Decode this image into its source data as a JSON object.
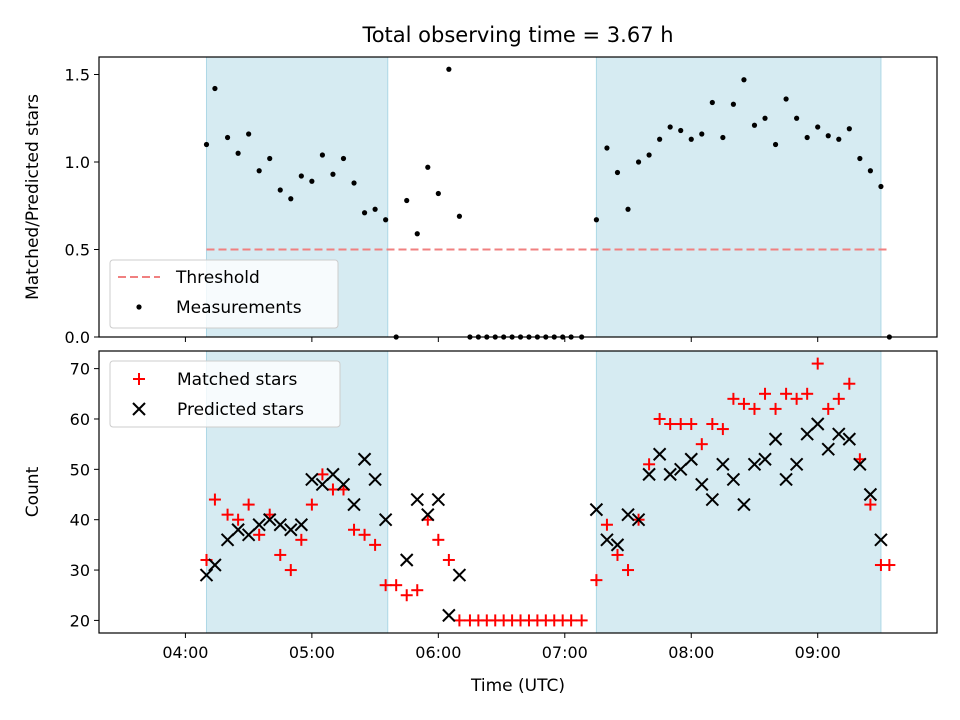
{
  "chart_data": {
    "type": "scatter",
    "title": "Total observing time = 3.67 h",
    "shaded_intervals_minutes": [
      [
        250,
        336
      ],
      [
        435,
        570
      ]
    ],
    "x_ticks": [
      {
        "minute": 240,
        "label": "04:00"
      },
      {
        "minute": 300,
        "label": "05:00"
      },
      {
        "minute": 360,
        "label": "06:00"
      },
      {
        "minute": 420,
        "label": "07:00"
      },
      {
        "minute": 480,
        "label": "08:00"
      },
      {
        "minute": 540,
        "label": "09:00"
      }
    ],
    "xlabel": "Time (UTC)",
    "panels": [
      {
        "ylabel": "Matched/Predicted stars",
        "ylim": [
          0,
          1.6
        ],
        "yticks": [
          "0.0",
          "0.5",
          "1.0",
          "1.5"
        ],
        "ytick_values": [
          0,
          0.5,
          1.0,
          1.5
        ],
        "legend": {
          "placement": "lower-left",
          "entries": [
            "Threshold",
            "Measurements"
          ]
        },
        "threshold": {
          "name": "Threshold",
          "value": 0.5,
          "color": "#f08080"
        },
        "series": [
          {
            "name": "Measurements",
            "color": "#000000",
            "marker": "dot",
            "points": [
              [
                250,
                1.1
              ],
              [
                254,
                1.42
              ],
              [
                260,
                1.14
              ],
              [
                265,
                1.05
              ],
              [
                270,
                1.16
              ],
              [
                275,
                0.95
              ],
              [
                280,
                1.02
              ],
              [
                285,
                0.84
              ],
              [
                290,
                0.79
              ],
              [
                295,
                0.92
              ],
              [
                300,
                0.89
              ],
              [
                305,
                1.04
              ],
              [
                310,
                0.93
              ],
              [
                315,
                1.02
              ],
              [
                320,
                0.88
              ],
              [
                325,
                0.71
              ],
              [
                330,
                0.73
              ],
              [
                335,
                0.67
              ],
              [
                340,
                0.0
              ],
              [
                345,
                0.78
              ],
              [
                350,
                0.59
              ],
              [
                355,
                0.97
              ],
              [
                360,
                0.82
              ],
              [
                365,
                1.53
              ],
              [
                370,
                0.69
              ],
              [
                375,
                0.0
              ],
              [
                379,
                0.0
              ],
              [
                383,
                0.0
              ],
              [
                387,
                0.0
              ],
              [
                391,
                0.0
              ],
              [
                395,
                0.0
              ],
              [
                399,
                0.0
              ],
              [
                403,
                0.0
              ],
              [
                407,
                0.0
              ],
              [
                411,
                0.0
              ],
              [
                415,
                0.0
              ],
              [
                419,
                0.0
              ],
              [
                423,
                0.0
              ],
              [
                428,
                0.0
              ],
              [
                435,
                0.67
              ],
              [
                440,
                1.08
              ],
              [
                445,
                0.94
              ],
              [
                450,
                0.73
              ],
              [
                455,
                1.0
              ],
              [
                460,
                1.04
              ],
              [
                465,
                1.13
              ],
              [
                470,
                1.2
              ],
              [
                475,
                1.18
              ],
              [
                480,
                1.13
              ],
              [
                485,
                1.16
              ],
              [
                490,
                1.34
              ],
              [
                495,
                1.14
              ],
              [
                500,
                1.33
              ],
              [
                505,
                1.47
              ],
              [
                510,
                1.21
              ],
              [
                515,
                1.25
              ],
              [
                520,
                1.1
              ],
              [
                525,
                1.36
              ],
              [
                530,
                1.25
              ],
              [
                535,
                1.14
              ],
              [
                540,
                1.2
              ],
              [
                545,
                1.15
              ],
              [
                550,
                1.13
              ],
              [
                555,
                1.19
              ],
              [
                560,
                1.02
              ],
              [
                565,
                0.95
              ],
              [
                570,
                0.86
              ],
              [
                574,
                0.0
              ]
            ]
          }
        ]
      },
      {
        "ylabel": "Count",
        "ylim": [
          17.5,
          73.5
        ],
        "yticks": [
          "20",
          "30",
          "40",
          "50",
          "60",
          "70"
        ],
        "ytick_values": [
          20,
          30,
          40,
          50,
          60,
          70
        ],
        "legend": {
          "placement": "upper-left",
          "entries": [
            "Matched stars",
            "Predicted stars"
          ]
        },
        "series": [
          {
            "name": "Matched stars",
            "color": "#ff0000",
            "marker": "plus",
            "points": [
              [
                250,
                32
              ],
              [
                254,
                44
              ],
              [
                260,
                41
              ],
              [
                265,
                40
              ],
              [
                270,
                43
              ],
              [
                275,
                37
              ],
              [
                280,
                41
              ],
              [
                285,
                33
              ],
              [
                290,
                30
              ],
              [
                295,
                36
              ],
              [
                300,
                43
              ],
              [
                305,
                49
              ],
              [
                310,
                46
              ],
              [
                315,
                46
              ],
              [
                320,
                38
              ],
              [
                325,
                37
              ],
              [
                330,
                35
              ],
              [
                335,
                27
              ],
              [
                340,
                27
              ],
              [
                345,
                25
              ],
              [
                350,
                26
              ],
              [
                355,
                40
              ],
              [
                360,
                36
              ],
              [
                365,
                32
              ],
              [
                370,
                20
              ],
              [
                375,
                20
              ],
              [
                379,
                20
              ],
              [
                383,
                20
              ],
              [
                387,
                20
              ],
              [
                391,
                20
              ],
              [
                395,
                20
              ],
              [
                399,
                20
              ],
              [
                403,
                20
              ],
              [
                407,
                20
              ],
              [
                411,
                20
              ],
              [
                415,
                20
              ],
              [
                419,
                20
              ],
              [
                423,
                20
              ],
              [
                428,
                20
              ],
              [
                435,
                28
              ],
              [
                440,
                39
              ],
              [
                445,
                33
              ],
              [
                450,
                30
              ],
              [
                455,
                40
              ],
              [
                460,
                51
              ],
              [
                465,
                60
              ],
              [
                470,
                59
              ],
              [
                475,
                59
              ],
              [
                480,
                59
              ],
              [
                485,
                55
              ],
              [
                490,
                59
              ],
              [
                495,
                58
              ],
              [
                500,
                64
              ],
              [
                505,
                63
              ],
              [
                510,
                62
              ],
              [
                515,
                65
              ],
              [
                520,
                62
              ],
              [
                525,
                65
              ],
              [
                530,
                64
              ],
              [
                535,
                65
              ],
              [
                540,
                71
              ],
              [
                545,
                62
              ],
              [
                550,
                64
              ],
              [
                555,
                67
              ],
              [
                560,
                52
              ],
              [
                565,
                43
              ],
              [
                570,
                31
              ],
              [
                574,
                31
              ]
            ]
          },
          {
            "name": "Predicted stars",
            "color": "#000000",
            "marker": "x",
            "points": [
              [
                250,
                29
              ],
              [
                254,
                31
              ],
              [
                260,
                36
              ],
              [
                265,
                38
              ],
              [
                270,
                37
              ],
              [
                275,
                39
              ],
              [
                280,
                40
              ],
              [
                285,
                39
              ],
              [
                290,
                38
              ],
              [
                295,
                39
              ],
              [
                300,
                48
              ],
              [
                305,
                47
              ],
              [
                310,
                49
              ],
              [
                315,
                47
              ],
              [
                320,
                43
              ],
              [
                325,
                52
              ],
              [
                330,
                48
              ],
              [
                335,
                40
              ],
              [
                345,
                32
              ],
              [
                350,
                44
              ],
              [
                355,
                41
              ],
              [
                360,
                44
              ],
              [
                365,
                21
              ],
              [
                370,
                29
              ],
              [
                435,
                42
              ],
              [
                440,
                36
              ],
              [
                445,
                35
              ],
              [
                450,
                41
              ],
              [
                455,
                40
              ],
              [
                460,
                49
              ],
              [
                465,
                53
              ],
              [
                470,
                49
              ],
              [
                475,
                50
              ],
              [
                480,
                52
              ],
              [
                485,
                47
              ],
              [
                490,
                44
              ],
              [
                495,
                51
              ],
              [
                500,
                48
              ],
              [
                505,
                43
              ],
              [
                510,
                51
              ],
              [
                515,
                52
              ],
              [
                520,
                56
              ],
              [
                525,
                48
              ],
              [
                530,
                51
              ],
              [
                535,
                57
              ],
              [
                540,
                59
              ],
              [
                545,
                54
              ],
              [
                550,
                57
              ],
              [
                555,
                56
              ],
              [
                560,
                51
              ],
              [
                565,
                45
              ],
              [
                570,
                36
              ]
            ]
          }
        ]
      }
    ]
  }
}
